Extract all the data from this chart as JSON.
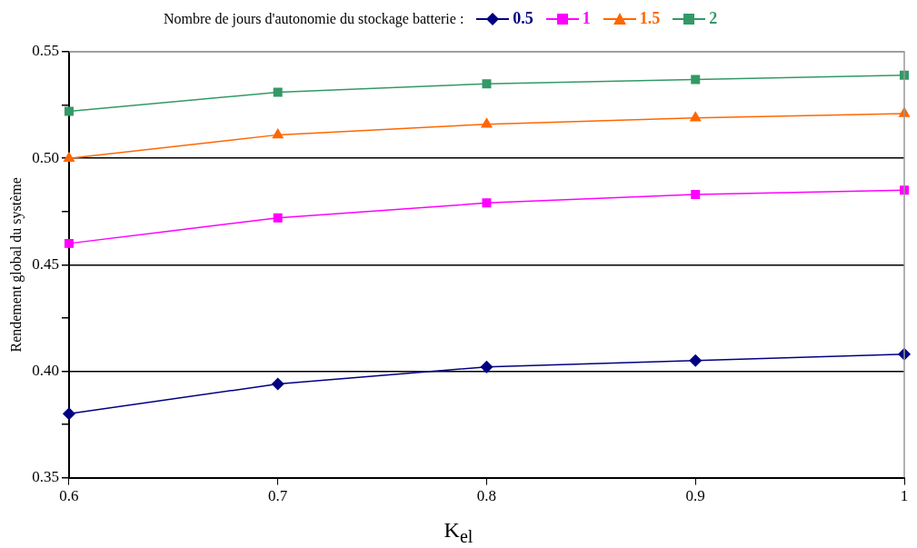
{
  "chart_data": {
    "type": "line",
    "legend_title": "Nombre de jours d'autonomie du stockage batterie :",
    "xlabel": "K$_{el}$",
    "ylabel": "Rendement global du système",
    "x": [
      0.6,
      0.7,
      0.8,
      0.9,
      1
    ],
    "xlim": [
      0.6,
      1
    ],
    "xticks": [
      0.6,
      0.7,
      0.8,
      0.9,
      1
    ],
    "ylim": [
      0.35,
      0.55
    ],
    "yticks": [
      0.35,
      {
        "value": 0.375,
        "label": null
      },
      {
        "value": 0.4,
        "label": "0.40"
      },
      {
        "value": 0.425,
        "label": null
      },
      0.45,
      {
        "value": 0.475,
        "label": null
      },
      {
        "value": 0.5,
        "label": "0.50"
      },
      {
        "value": 0.525,
        "label": null
      },
      0.55
    ],
    "grid": "y",
    "legend": "top",
    "series": [
      {
        "name": "0.5",
        "color": "#000080",
        "marker": "diamond",
        "values": [
          0.38,
          0.394,
          0.402,
          0.405,
          0.408
        ]
      },
      {
        "name": "1",
        "color": "#ff00ff",
        "marker": "square",
        "values": [
          0.46,
          0.472,
          0.479,
          0.483,
          0.485
        ]
      },
      {
        "name": "1.5",
        "color": "#ff6600",
        "marker": "triangle",
        "values": [
          0.5,
          0.511,
          0.516,
          0.519,
          0.521
        ]
      },
      {
        "name": "2",
        "color": "#339966",
        "marker": "square",
        "values": [
          0.522,
          0.531,
          0.535,
          0.537,
          0.539
        ]
      }
    ]
  }
}
